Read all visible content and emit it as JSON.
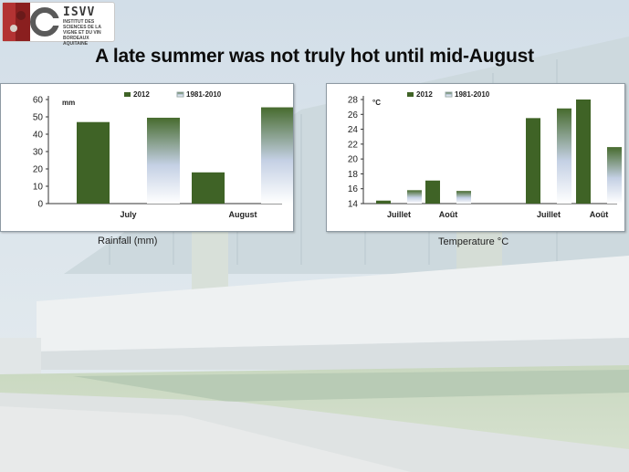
{
  "header": {
    "logo_name": "ISVV",
    "logo_subtitle": "INSTITUT DES SCIENCES DE LA VIGNE ET DU VIN BORDEAUX AQUITAINE",
    "title": "A late summer was not truly hot until mid-August"
  },
  "captions": {
    "rainfall": "Rainfall (mm)",
    "temperature": "Temperature °C"
  },
  "colors": {
    "series_2012": "#3f6326",
    "series_normal_top": "#476b2e",
    "series_normal_bottom": "#ffffff"
  },
  "chart_data": [
    {
      "type": "bar",
      "unit_label": "mm",
      "categories": [
        "July",
        "August"
      ],
      "series": [
        {
          "name": "2012",
          "values": [
            47,
            18
          ]
        },
        {
          "name": "1981-2010",
          "values": [
            49.5,
            55.5
          ]
        }
      ],
      "ylim": [
        0,
        60
      ],
      "yticks": [
        0,
        10,
        20,
        30,
        40,
        50,
        60
      ],
      "legend": "top",
      "grid": false
    },
    {
      "type": "bar",
      "unit_label": "°C",
      "categories": [
        "Juillet",
        "Août",
        "Juillet",
        "Août"
      ],
      "series": [
        {
          "name": "2012",
          "values": [
            14.4,
            17.1,
            25.5,
            28
          ]
        },
        {
          "name": "1981-2010",
          "values": [
            15.8,
            15.7,
            26.8,
            21.6
          ]
        }
      ],
      "ylim": [
        14,
        28
      ],
      "yticks": [
        14,
        16,
        18,
        20,
        22,
        24,
        26,
        28
      ],
      "legend": "top",
      "grid": false
    }
  ]
}
